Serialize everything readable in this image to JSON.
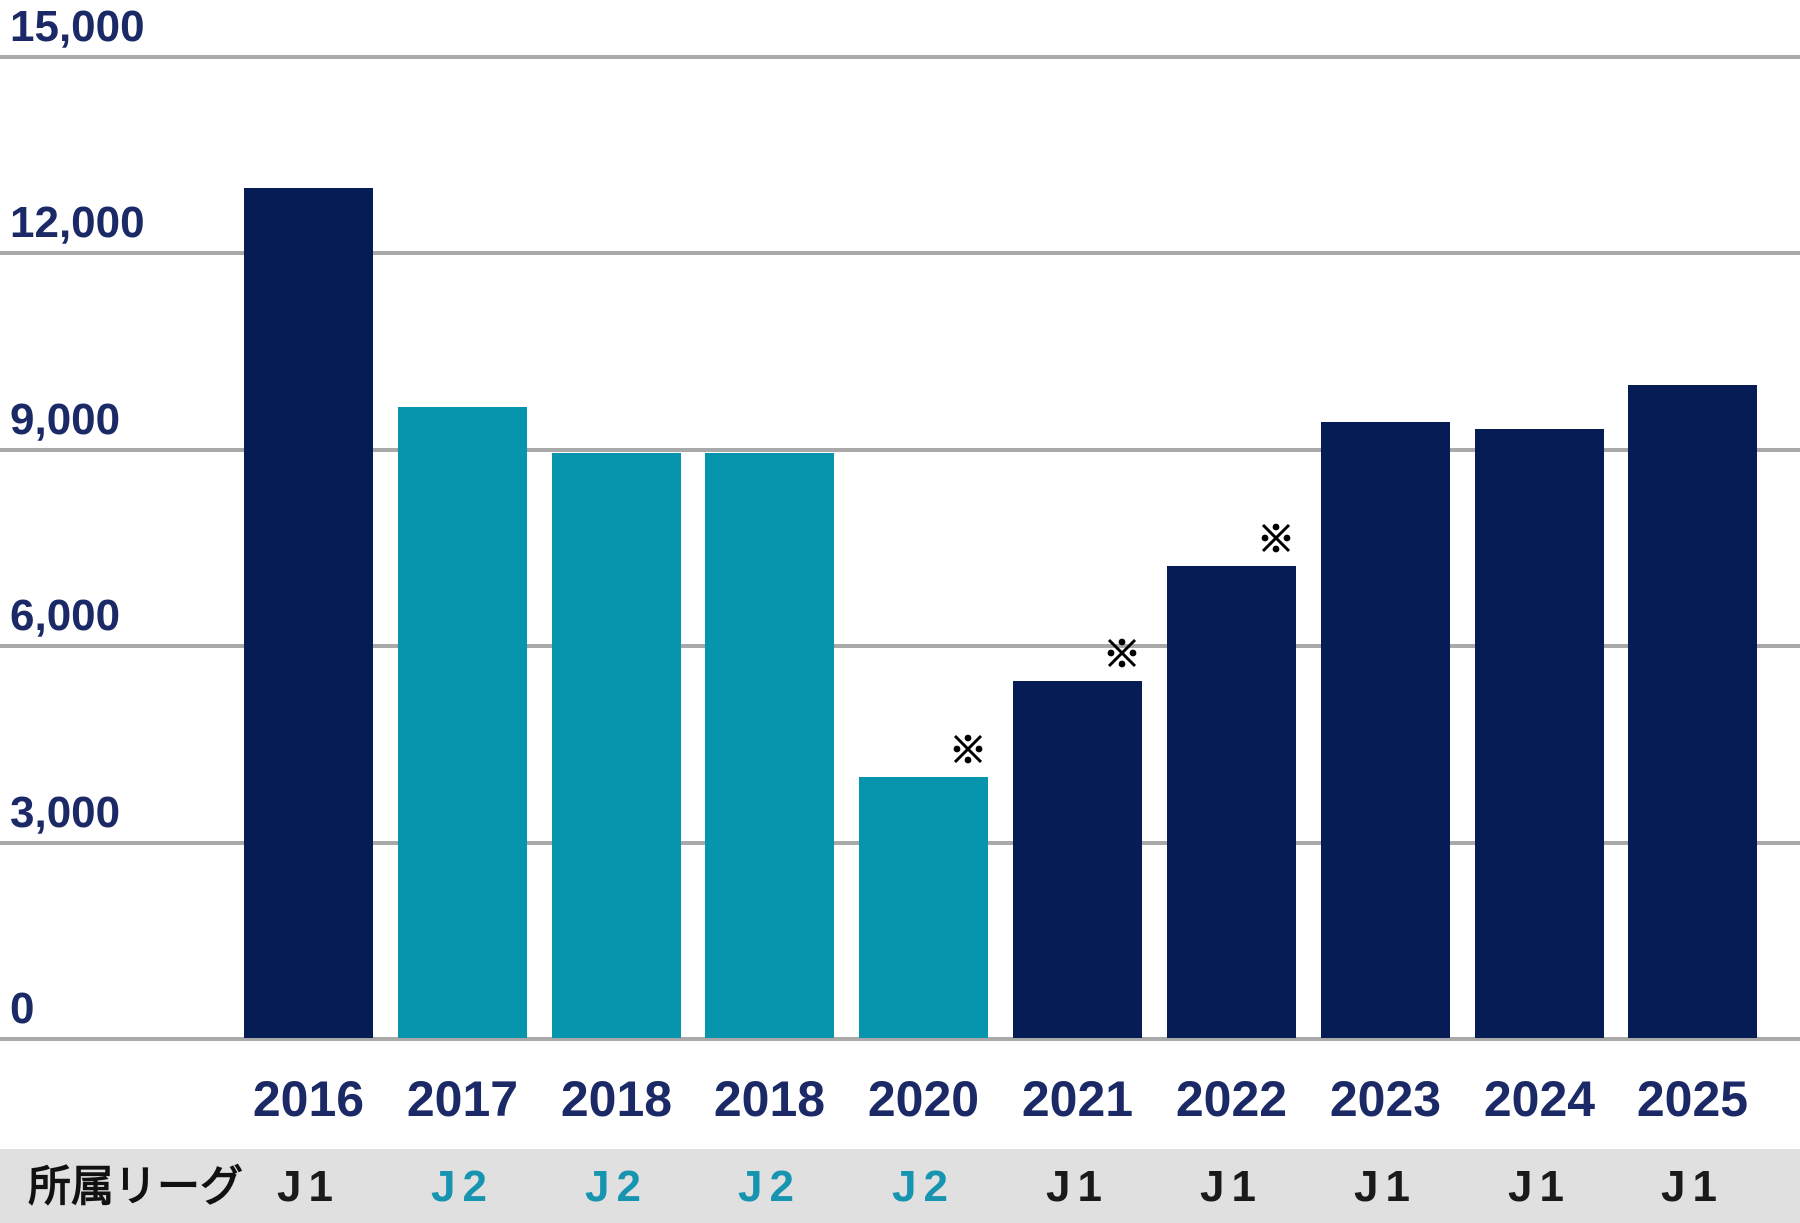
{
  "chart_data": {
    "type": "bar",
    "title": "",
    "xlabel": "",
    "ylabel": "",
    "ylim": [
      0,
      15000
    ],
    "grid": true,
    "legend": "none",
    "y_axis": {
      "ticks": [
        "15,000",
        "12,000",
        "9,000",
        "6,000",
        "3,000",
        "0"
      ],
      "min": 0,
      "max": 15000,
      "step": 3000
    },
    "categories": [
      "2016",
      "2017",
      "2018",
      "2018",
      "2020",
      "2021",
      "2022",
      "2023",
      "2024",
      "2025"
    ],
    "values": [
      12980,
      9640,
      8930,
      8930,
      3990,
      5450,
      7210,
      9410,
      9300,
      9970
    ],
    "bars": [
      {
        "year": "2016",
        "value": 12980,
        "league": "J1",
        "annotated": false
      },
      {
        "year": "2017",
        "value": 9640,
        "league": "J2",
        "annotated": false
      },
      {
        "year": "2018",
        "value": 8930,
        "league": "J2",
        "annotated": false
      },
      {
        "year": "2018",
        "value": 8930,
        "league": "J2",
        "annotated": false
      },
      {
        "year": "2020",
        "value": 3990,
        "league": "J2",
        "annotated": true
      },
      {
        "year": "2021",
        "value": 5450,
        "league": "J1",
        "annotated": true
      },
      {
        "year": "2022",
        "value": 7210,
        "league": "J1",
        "annotated": true
      },
      {
        "year": "2023",
        "value": 9410,
        "league": "J1",
        "annotated": false
      },
      {
        "year": "2024",
        "value": 9300,
        "league": "J1",
        "annotated": false
      },
      {
        "year": "2025",
        "value": 9970,
        "league": "J1",
        "annotated": false
      }
    ],
    "annotation": {
      "symbol": "※",
      "annotated_years": [
        "2020",
        "2021",
        "2022"
      ]
    }
  },
  "league_row": {
    "label": "所属リーグ",
    "values": [
      "J1",
      "J2",
      "J2",
      "J2",
      "J2",
      "J1",
      "J1",
      "J1",
      "J1",
      "J1"
    ]
  },
  "colors": {
    "j1_bar": "#051c55",
    "j2_bar": "#0795ae",
    "axis_text": "#1b2a66",
    "gridline": "#a9a9a9",
    "band_bg": "#e0e0e0",
    "j1_text": "#1a1a1a",
    "j2_text": "#1794b0",
    "annotation": "#000000"
  }
}
